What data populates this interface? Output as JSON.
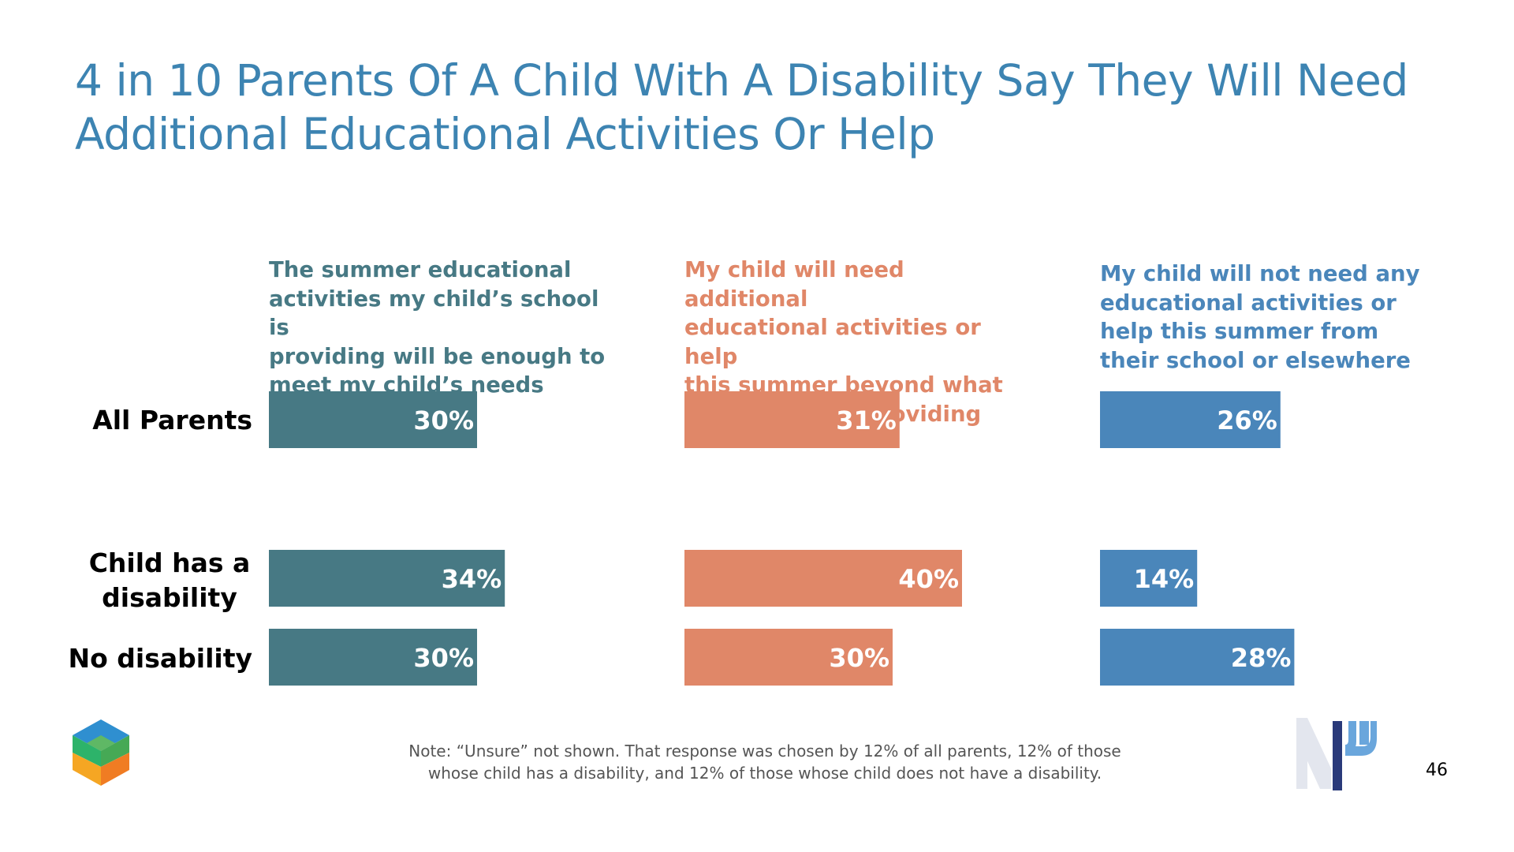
{
  "slide": {
    "title_line1": "4 in 10 Parents Of A Child With A Disability Say They Will Need",
    "title_line2": "Additional Educational Activities Or Help",
    "note_line1": "Note: “Unsure” not shown. That response was chosen by 12% of all parents, 12% of those",
    "note_line2": "whose child has a disability, and 12% of those whose child does not have a disability.",
    "page_number": "46"
  },
  "colors": {
    "title": "#3d84b2",
    "series1": "#477984",
    "series2": "#e08768",
    "series3": "#4a86ba",
    "note": "#555555"
  },
  "chart_data": {
    "type": "bar",
    "orientation": "horizontal",
    "layout": "small-multiples",
    "categories": [
      "All Parents",
      "Child has a disability",
      "No disability"
    ],
    "category_label_lines": [
      [
        "All Parents"
      ],
      [
        "Child has a",
        "disability"
      ],
      [
        "No disability"
      ]
    ],
    "series": [
      {
        "name": "The summer educational activities my child’s school is providing will be enough to meet my child’s needs",
        "name_lines": [
          "The summer educational",
          "activities my child’s school is",
          "providing will be enough to",
          "meet my child’s needs"
        ],
        "color": "#477984",
        "values": [
          30,
          34,
          30
        ],
        "labels": [
          "30%",
          "34%",
          "30%"
        ]
      },
      {
        "name": "My child will need additional educational activities or help this summer beyond what their school is providing",
        "name_lines": [
          "My child will need additional",
          "educational activities or help",
          "this summer beyond what",
          "their school is providing"
        ],
        "color": "#e08768",
        "values": [
          31,
          40,
          30
        ],
        "labels": [
          "31%",
          "40%",
          "30%"
        ]
      },
      {
        "name": "My child will not need any educational activities or help this summer from their school or elsewhere",
        "name_lines": [
          "My child will not need any",
          "educational activities or",
          "help this summer from",
          "their school or elsewhere"
        ],
        "color": "#4a86ba",
        "values": [
          26,
          14,
          28
        ],
        "labels": [
          "26%",
          "14%",
          "28%"
        ]
      }
    ],
    "xlabel": "",
    "ylabel": "",
    "grid": false,
    "legend": "column headers above bars",
    "value_unit": "%"
  },
  "logos": {
    "left": "cube-logo-icon",
    "right": "np-logo-icon"
  }
}
